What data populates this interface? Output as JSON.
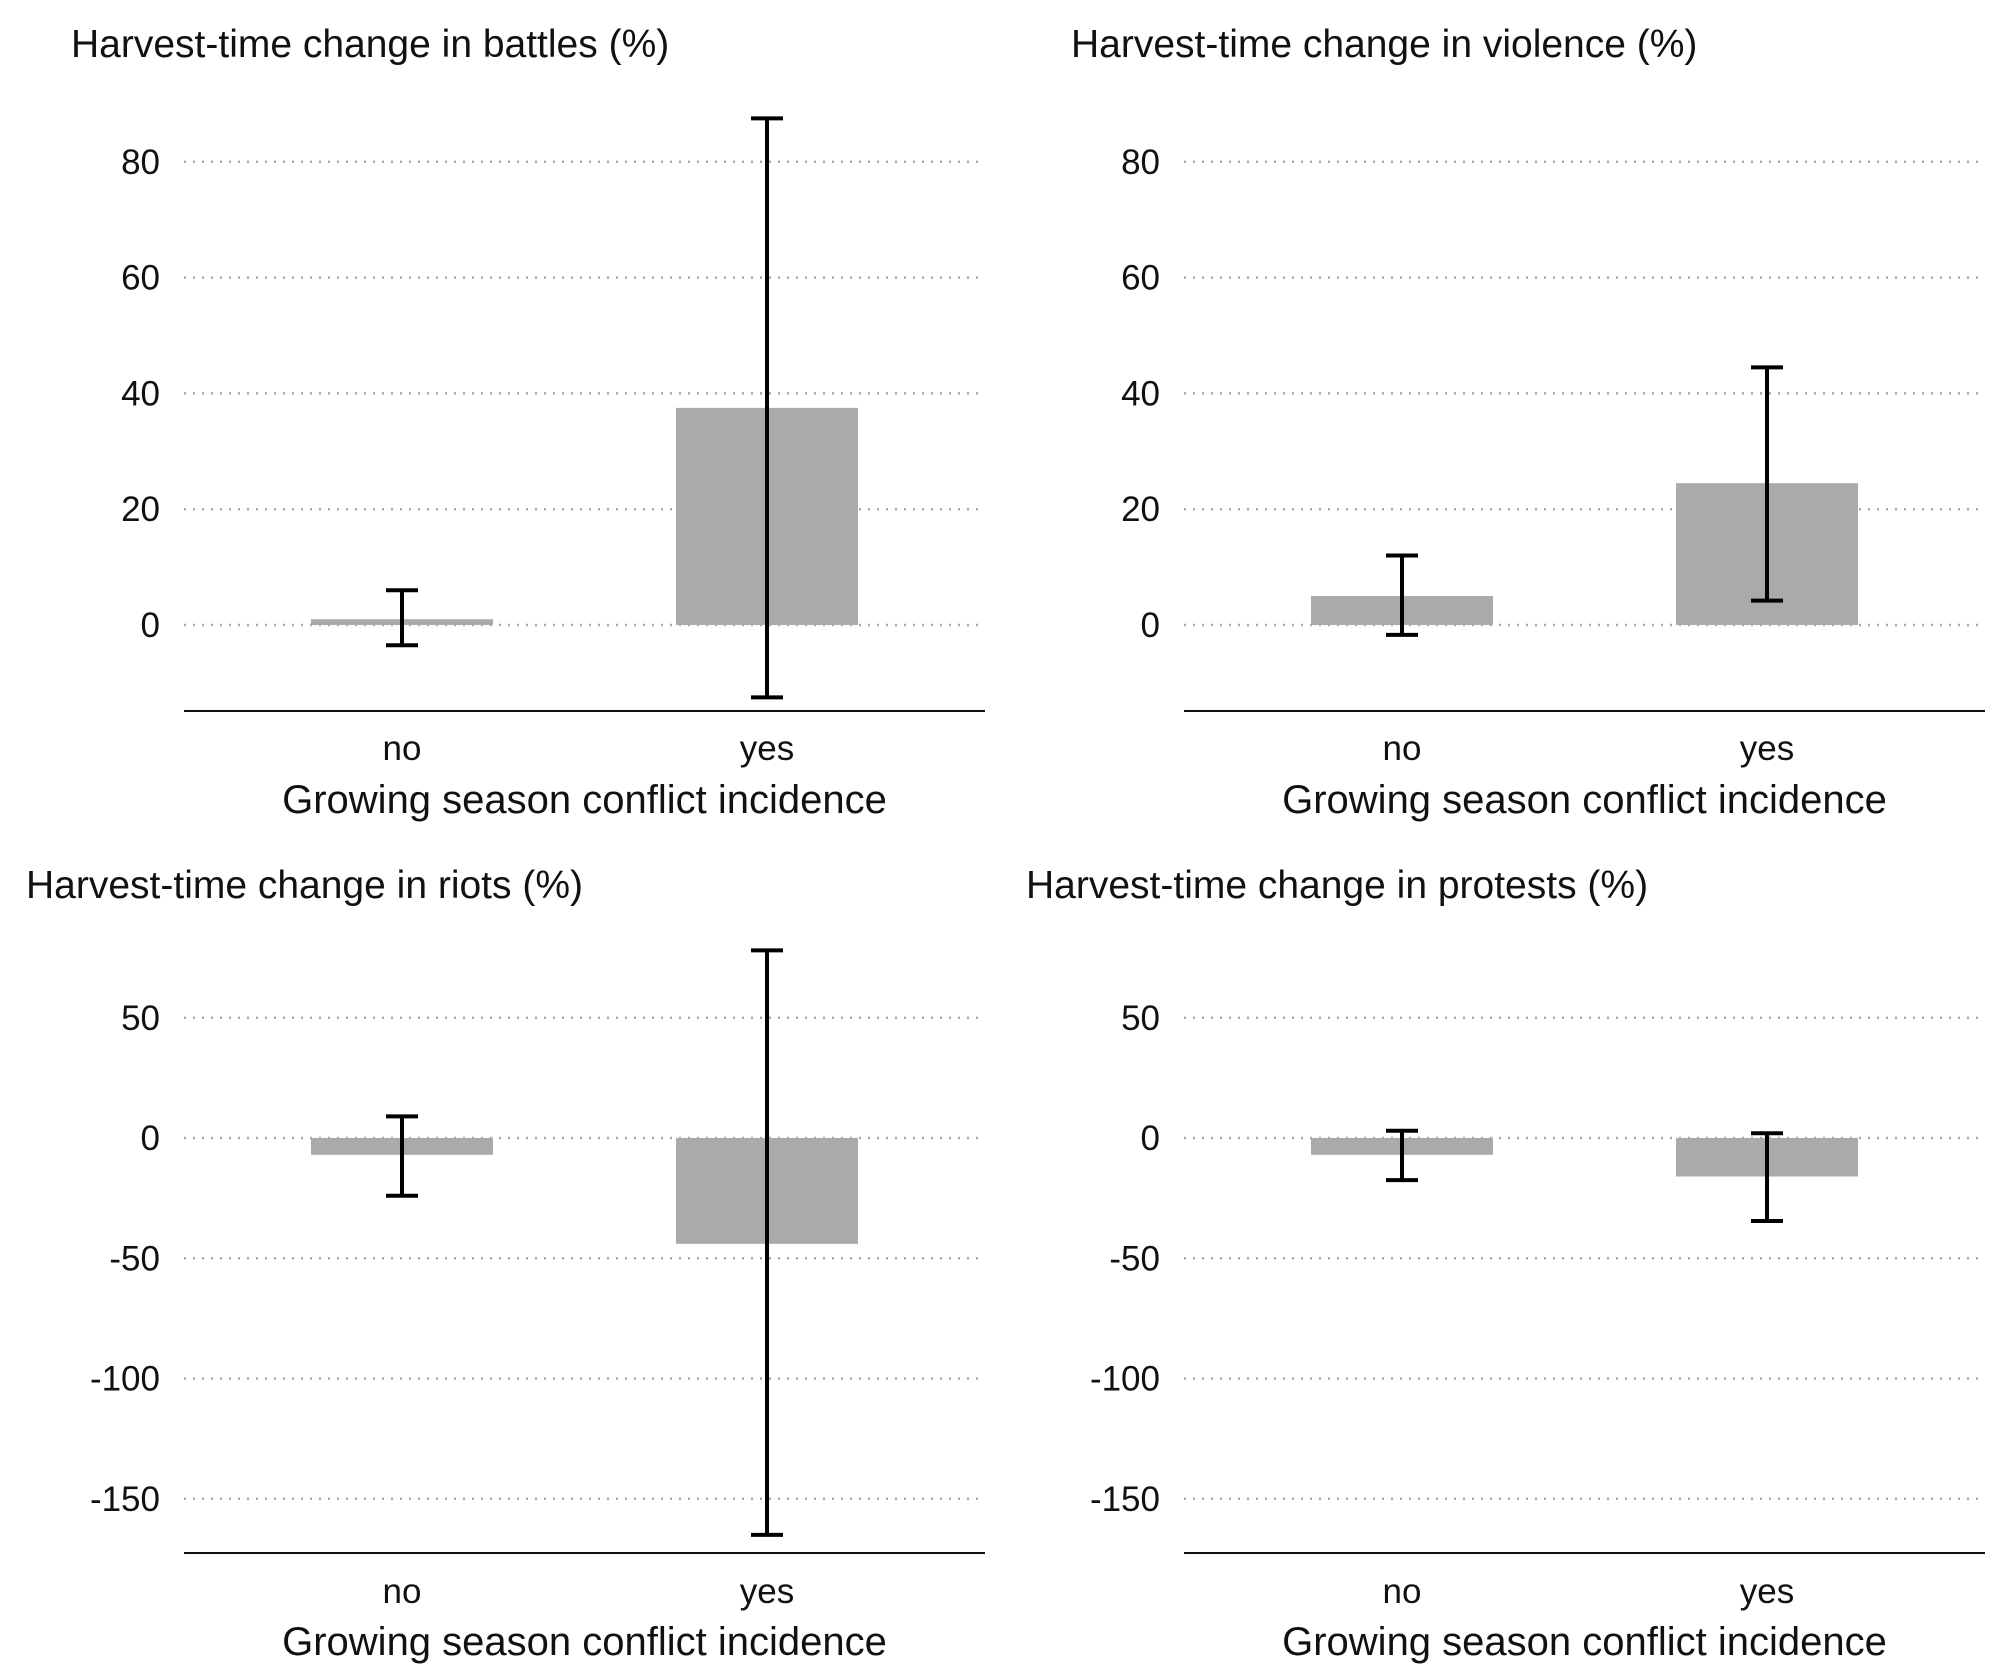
{
  "colors": {
    "bar": "#aaaaaa",
    "error_bar": "#000000",
    "grid": "#a8a8a8",
    "axis": "#111111"
  },
  "chart_data": [
    {
      "type": "bar",
      "title": "Harvest-time change in battles (%)",
      "xlabel": "Growing season conflict incidence",
      "ylabel": "",
      "categories": [
        "no",
        "yes"
      ],
      "values": [
        1,
        37.5
      ],
      "error_low": [
        -3.5,
        -12.5
      ],
      "error_high": [
        6,
        87.5
      ],
      "yticks": [
        0,
        20,
        40,
        60,
        80
      ],
      "ylim": [
        -15,
        93
      ],
      "grid": true
    },
    {
      "type": "bar",
      "title": "Harvest-time change in violence (%)",
      "xlabel": "Growing season conflict incidence",
      "ylabel": "",
      "categories": [
        "no",
        "yes"
      ],
      "values": [
        5,
        24.5
      ],
      "error_low": [
        -1.7,
        4.2
      ],
      "error_high": [
        12,
        44.5
      ],
      "yticks": [
        0,
        20,
        40,
        60,
        80
      ],
      "ylim": [
        -15,
        93
      ],
      "grid": true
    },
    {
      "type": "bar",
      "title": "Harvest-time change in riots (%)",
      "xlabel": "Growing season conflict incidence",
      "ylabel": "",
      "categories": [
        "no",
        "yes"
      ],
      "values": [
        -7,
        -44
      ],
      "error_low": [
        -24,
        -165
      ],
      "error_high": [
        9,
        78
      ],
      "yticks": [
        -150,
        -100,
        -50,
        0,
        50
      ],
      "ylim": [
        -172,
        81
      ],
      "grid": true
    },
    {
      "type": "bar",
      "title": "Harvest-time change in protests (%)",
      "xlabel": "Growing season conflict incidence",
      "ylabel": "",
      "categories": [
        "no",
        "yes"
      ],
      "values": [
        -7,
        -16
      ],
      "error_low": [
        -17.5,
        -34.5
      ],
      "error_high": [
        3,
        2
      ],
      "yticks": [
        -150,
        -100,
        -50,
        0,
        50
      ],
      "ylim": [
        -172,
        81
      ],
      "grid": true
    }
  ]
}
